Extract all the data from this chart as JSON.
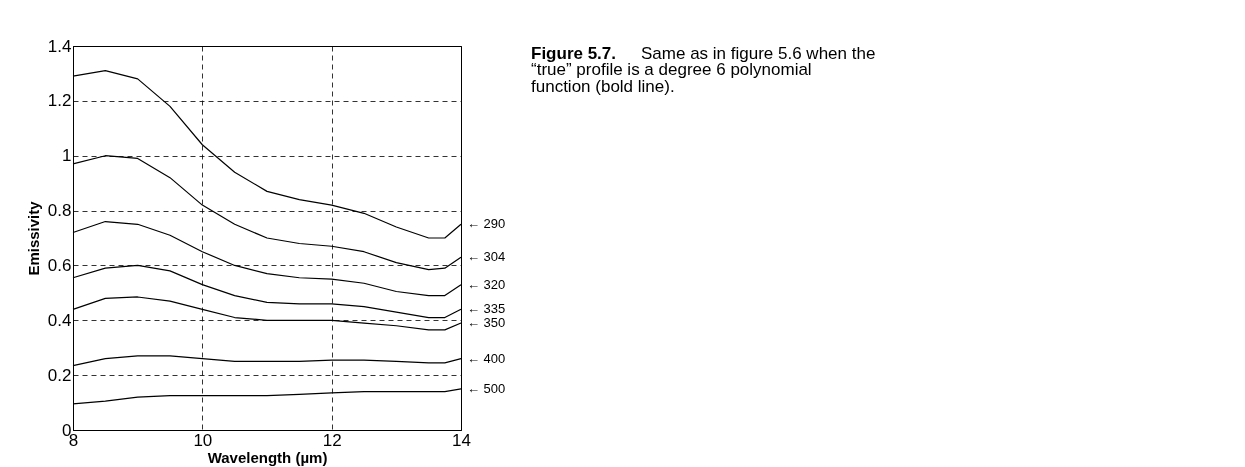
{
  "chart_data": {
    "type": "line",
    "xlabel": "Wavelength (µm)",
    "ylabel": "Emissivity",
    "xlim": [
      8,
      14
    ],
    "xticks": [
      8,
      10,
      12,
      14
    ],
    "ylim": [
      0,
      1.4
    ],
    "yticks": [
      0,
      0.2,
      0.4,
      0.6,
      0.8,
      1,
      1.2,
      1.4
    ],
    "grid": true,
    "line_style": "solid",
    "marker": "none",
    "legend": false,
    "x": [
      8,
      8.5,
      9,
      9.5,
      10,
      10.5,
      11,
      11.5,
      12,
      12.5,
      13,
      13.5,
      13.75,
      14
    ],
    "series": [
      {
        "name": "← 290",
        "color": "#000000",
        "values": [
          1.29,
          1.31,
          1.28,
          1.18,
          1.04,
          0.94,
          0.87,
          0.84,
          0.82,
          0.79,
          0.74,
          0.7,
          0.7,
          0.75
        ]
      },
      {
        "name": "← 304",
        "color": "#000000",
        "values": [
          0.97,
          1.0,
          0.99,
          0.92,
          0.82,
          0.75,
          0.7,
          0.68,
          0.67,
          0.65,
          0.61,
          0.585,
          0.59,
          0.63
        ]
      },
      {
        "name": "← 320",
        "color": "#000000",
        "values": [
          0.72,
          0.76,
          0.75,
          0.71,
          0.65,
          0.6,
          0.57,
          0.555,
          0.55,
          0.535,
          0.505,
          0.49,
          0.49,
          0.53
        ]
      },
      {
        "name": "← 335",
        "color": "#000000",
        "values": [
          0.555,
          0.59,
          0.6,
          0.58,
          0.53,
          0.49,
          0.465,
          0.46,
          0.46,
          0.45,
          0.43,
          0.41,
          0.41,
          0.44
        ]
      },
      {
        "name": "← 350",
        "color": "#000000",
        "values": [
          0.44,
          0.48,
          0.485,
          0.47,
          0.44,
          0.41,
          0.4,
          0.4,
          0.4,
          0.39,
          0.38,
          0.365,
          0.365,
          0.39
        ]
      },
      {
        "name": "← 400",
        "color": "#000000",
        "values": [
          0.235,
          0.26,
          0.27,
          0.27,
          0.26,
          0.25,
          0.25,
          0.25,
          0.255,
          0.255,
          0.25,
          0.245,
          0.245,
          0.26
        ]
      },
      {
        "name": "← 500",
        "color": "#000000",
        "values": [
          0.095,
          0.105,
          0.12,
          0.125,
          0.125,
          0.125,
          0.125,
          0.13,
          0.135,
          0.14,
          0.14,
          0.14,
          0.14,
          0.15
        ]
      }
    ],
    "annotations": [
      "Figure 5.7.",
      "Same as in figure 5.6 when the “true” profile is a degree 6 polynomial function (bold line)."
    ]
  }
}
